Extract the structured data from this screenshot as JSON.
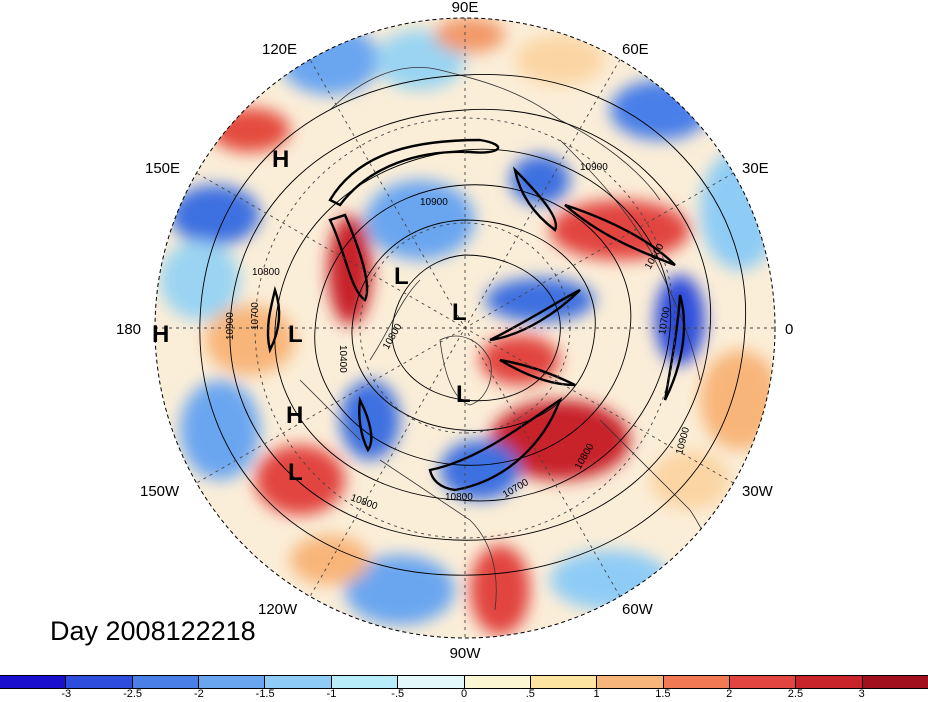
{
  "title": "Day 2008122218",
  "longitude_labels": [
    "90E",
    "60E",
    "30E",
    "0",
    "30W",
    "60W",
    "90W",
    "120W",
    "150W",
    "180",
    "150E",
    "120E"
  ],
  "pressure_centers": [
    "H",
    "H",
    "L",
    "L",
    "L",
    "H",
    "L",
    "L"
  ],
  "contour_labels": [
    "10900",
    "10800",
    "10700",
    "10600",
    "10400",
    "10800",
    "10900",
    "10900",
    "10700",
    "10800",
    "10800",
    "10700",
    "10800",
    "10900"
  ],
  "colorbar": {
    "colors": [
      "#1a0fcc",
      "#2f4ddc",
      "#4a7fe8",
      "#6aa6f0",
      "#8fccf5",
      "#b8ecf8",
      "#e3f8fb",
      "#fdf6d2",
      "#fde4a1",
      "#f8b579",
      "#f17a55",
      "#e24440",
      "#c8242a",
      "#a3101d"
    ],
    "tick_labels": [
      "-3",
      "-2.5",
      "-2",
      "-1.5",
      "-1",
      "-.5",
      "0",
      ".5",
      "1",
      "1.5",
      "2",
      "2.5",
      "3"
    ]
  }
}
